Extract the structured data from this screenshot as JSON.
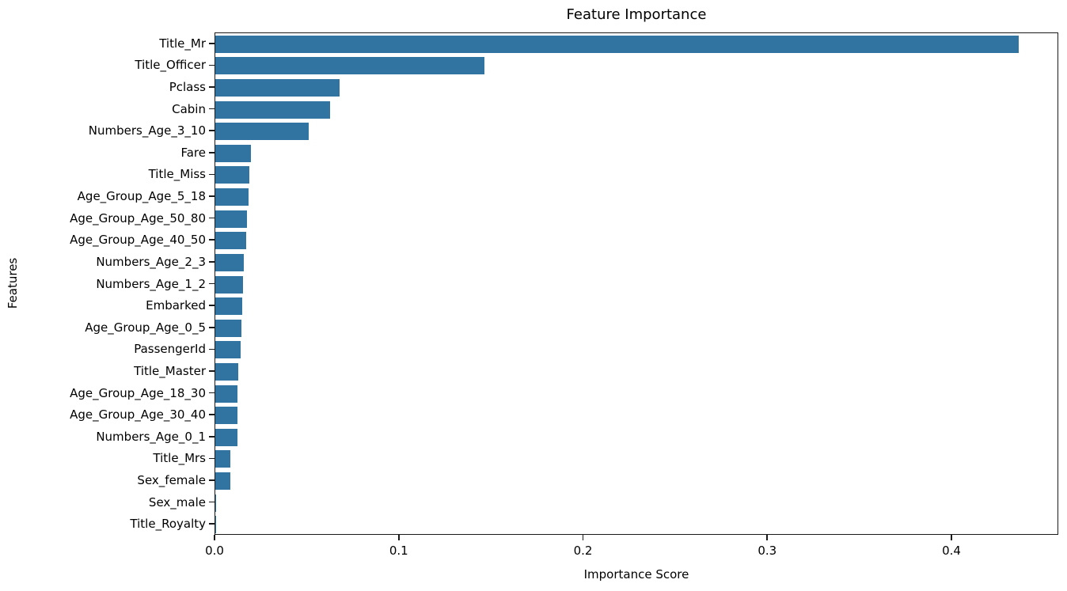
{
  "chart_data": {
    "type": "bar",
    "orientation": "horizontal",
    "title": "Feature Importance",
    "xlabel": "Importance Score",
    "ylabel": "Features",
    "categories": [
      "Title_Mr",
      "Title_Officer",
      "Pclass",
      "Cabin",
      "Numbers_Age_3_10",
      "Fare",
      "Title_Miss",
      "Age_Group_Age_5_18",
      "Age_Group_Age_50_80",
      "Age_Group_Age_40_50",
      "Numbers_Age_2_3",
      "Numbers_Age_1_2",
      "Embarked",
      "Age_Group_Age_0_5",
      "PassengerId",
      "Title_Master",
      "Age_Group_Age_18_30",
      "Age_Group_Age_30_40",
      "Numbers_Age_0_1",
      "Title_Mrs",
      "Sex_female",
      "Sex_male",
      "Title_Royalty"
    ],
    "values": [
      0.436,
      0.146,
      0.0676,
      0.0624,
      0.0506,
      0.0192,
      0.0185,
      0.0182,
      0.0172,
      0.0168,
      0.0153,
      0.0152,
      0.0146,
      0.014,
      0.0139,
      0.0126,
      0.0122,
      0.0121,
      0.012,
      0.0083,
      0.0082,
      0.0004,
      0.0001
    ],
    "xlim": [
      0,
      0.458
    ],
    "xticks": [
      0,
      0.1,
      0.2,
      0.3,
      0.4
    ],
    "xtick_labels": [
      "0.0",
      "0.1",
      "0.2",
      "0.3",
      "0.4"
    ],
    "bar_color": "#3274a1",
    "background_color": "#ffffff",
    "grid": false,
    "legend": null
  }
}
